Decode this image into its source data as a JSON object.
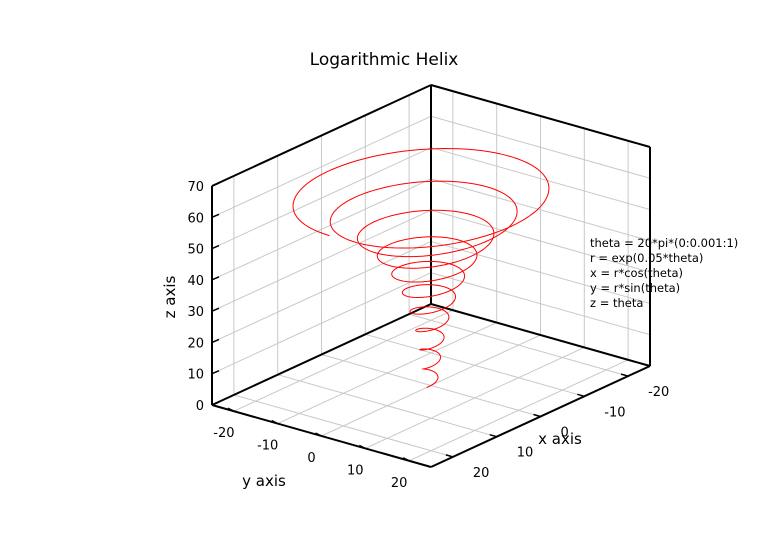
{
  "chart_data": {
    "type": "line",
    "title": "Logarithmic Helix",
    "xlabel": "x axis",
    "ylabel": "y axis",
    "zlabel": "z axis",
    "xlim": [
      -25,
      25
    ],
    "ylim": [
      -25,
      25
    ],
    "zlim": [
      0,
      70
    ],
    "xticks": [
      "-20",
      "-10",
      "0",
      "10",
      "20"
    ],
    "yticks": [
      "-20",
      "-10",
      "0",
      "10",
      "20"
    ],
    "zticks": [
      "0",
      "10",
      "20",
      "30",
      "40",
      "50",
      "60",
      "70"
    ],
    "grid": true,
    "series": [
      {
        "color": "#ff0000",
        "equations": {
          "theta": "20*pi*(0:0.001:1)",
          "r": "exp(0.05*theta)",
          "x": "r*cos(theta)",
          "y": "r*sin(theta)",
          "z": "theta"
        },
        "theta_range": [
          0,
          62.83
        ],
        "samples": 1001
      }
    ],
    "annotation": [
      "theta = 20*pi*(0:0.001:1)",
      "r = exp(0.05*theta)",
      "x = r*cos(theta)",
      "y = r*sin(theta)",
      "z = theta"
    ]
  }
}
